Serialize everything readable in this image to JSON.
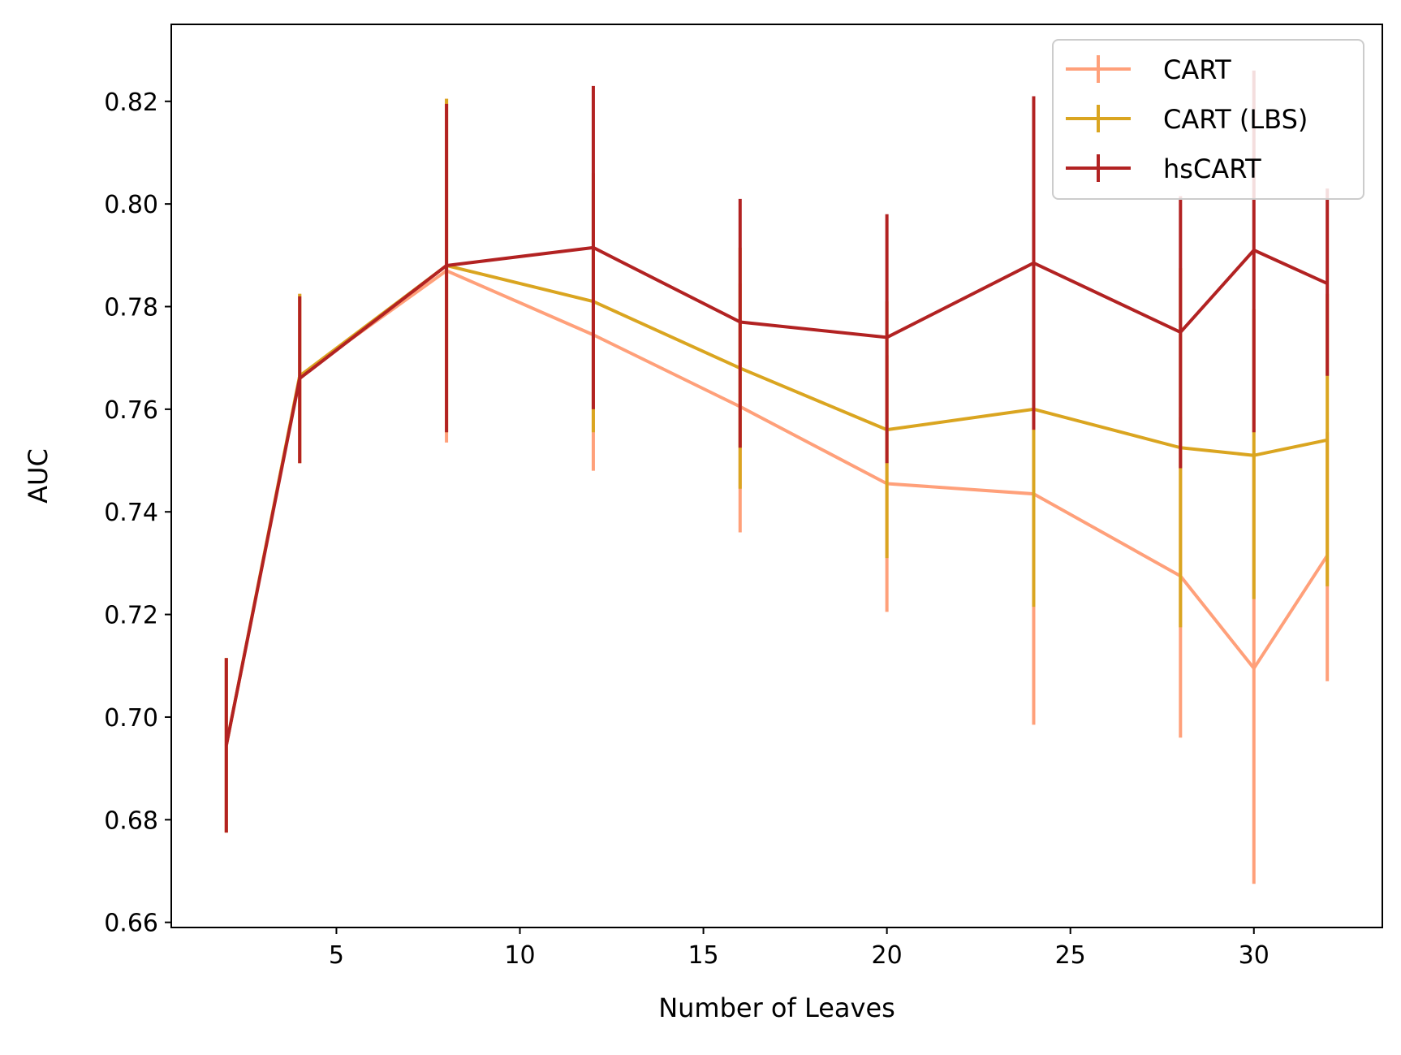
{
  "chart_data": {
    "type": "line",
    "title": "",
    "xlabel": "Number of Leaves",
    "ylabel": "AUC",
    "xlim": [
      0.5,
      33.5
    ],
    "ylim": [
      0.659,
      0.835
    ],
    "xticks": [
      5,
      10,
      15,
      20,
      25,
      30
    ],
    "xtick_labels": [
      "5",
      "10",
      "15",
      "20",
      "25",
      "30"
    ],
    "yticks": [
      0.66,
      0.68,
      0.7,
      0.72,
      0.74,
      0.76,
      0.78,
      0.8,
      0.82
    ],
    "ytick_labels": [
      "0.66",
      "0.68",
      "0.70",
      "0.72",
      "0.74",
      "0.76",
      "0.78",
      "0.80",
      "0.82"
    ],
    "grid": false,
    "legend_position": "top-right",
    "series": [
      {
        "name": "CART",
        "color": "#FFA07A",
        "x": [
          2,
          4,
          8,
          12,
          16,
          20,
          24,
          28,
          30,
          32
        ],
        "y": [
          0.6945,
          0.7665,
          0.787,
          0.7745,
          0.7605,
          0.7455,
          0.7435,
          0.7275,
          0.7095,
          0.7315
        ],
        "err_low": [
          0.6775,
          0.7495,
          0.7535,
          0.748,
          0.736,
          0.7205,
          0.6985,
          0.696,
          0.6675,
          0.707
        ],
        "err_high": [
          0.7115,
          0.7825,
          0.8205,
          0.8025,
          0.7845,
          0.7705,
          0.788,
          0.7585,
          0.7515,
          0.7555
        ]
      },
      {
        "name": "CART (LBS)",
        "color": "#DAA520",
        "x": [
          2,
          4,
          8,
          12,
          16,
          20,
          24,
          28,
          30,
          32
        ],
        "y": [
          0.6945,
          0.7665,
          0.788,
          0.781,
          0.768,
          0.756,
          0.76,
          0.7525,
          0.751,
          0.754
        ],
        "err_low": [
          0.6775,
          0.7495,
          0.7555,
          0.7555,
          0.7445,
          0.731,
          0.7215,
          0.7175,
          0.723,
          0.7255
        ],
        "err_high": [
          0.7115,
          0.7825,
          0.8205,
          0.806,
          0.7915,
          0.781,
          0.7985,
          0.7875,
          0.7795,
          0.7825
        ]
      },
      {
        "name": "hsCART",
        "color": "#B22222",
        "x": [
          2,
          4,
          8,
          12,
          16,
          20,
          24,
          28,
          30,
          32
        ],
        "y": [
          0.6945,
          0.766,
          0.788,
          0.7915,
          0.777,
          0.774,
          0.7885,
          0.775,
          0.791,
          0.7845
        ],
        "err_low": [
          0.6775,
          0.7495,
          0.7555,
          0.76,
          0.7525,
          0.7495,
          0.756,
          0.7485,
          0.7555,
          0.7665
        ],
        "err_high": [
          0.7115,
          0.782,
          0.8195,
          0.823,
          0.801,
          0.798,
          0.821,
          0.8015,
          0.826,
          0.803
        ]
      }
    ]
  }
}
